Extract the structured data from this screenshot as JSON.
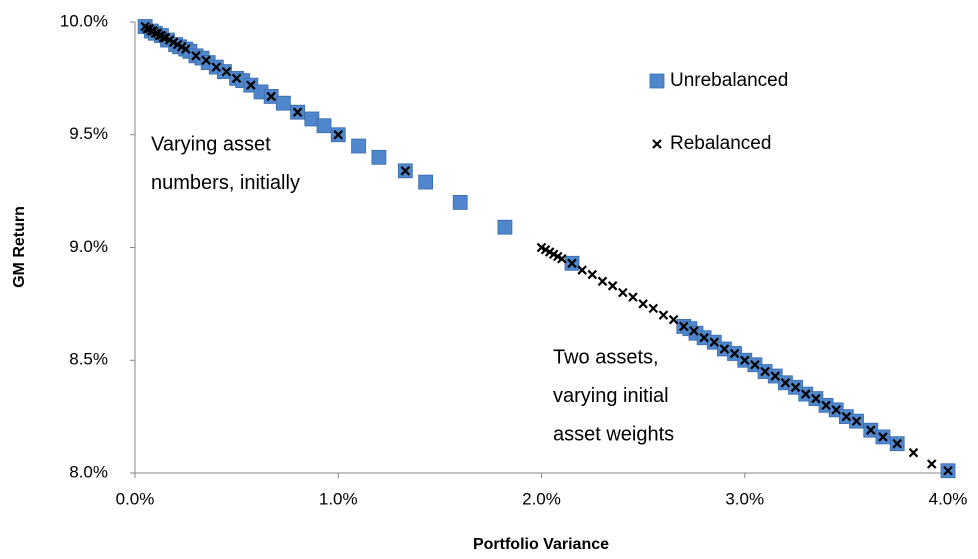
{
  "chart_data": {
    "type": "scatter",
    "xlabel": "Portfolio Variance",
    "ylabel": "GM Return",
    "xlim": [
      0,
      4
    ],
    "ylim": [
      8,
      10
    ],
    "xticks": [
      {
        "value": 0,
        "label": "0.0%"
      },
      {
        "value": 1,
        "label": "1.0%"
      },
      {
        "value": 2,
        "label": "2.0%"
      },
      {
        "value": 3,
        "label": "3.0%"
      },
      {
        "value": 4,
        "label": "4.0%"
      }
    ],
    "yticks": [
      {
        "value": 8,
        "label": "8.0%"
      },
      {
        "value": 8.5,
        "label": "8.5%"
      },
      {
        "value": 9,
        "label": "9.0%"
      },
      {
        "value": 9.5,
        "label": "9.5%"
      },
      {
        "value": 10,
        "label": "10.0%"
      }
    ],
    "grid": false,
    "legend": "upper right",
    "annotations": [
      {
        "lines": [
          "Varying asset",
          "numbers, initially"
        ]
      },
      {
        "lines": [
          "Two assets,",
          "varying initial",
          "asset weights"
        ]
      }
    ],
    "series": [
      {
        "name": "Unrebalanced",
        "color": "#4f86cc",
        "marker": "square",
        "x": [
          0.05,
          0.08,
          0.1,
          0.13,
          0.16,
          0.2,
          0.22,
          0.25,
          0.27,
          0.3,
          0.33,
          0.36,
          0.4,
          0.44,
          0.5,
          0.53,
          0.57,
          0.62,
          0.67,
          0.73,
          0.8,
          0.87,
          0.93,
          1.0,
          1.1,
          1.2,
          1.33,
          1.43,
          1.6,
          1.82,
          2.15,
          2.7,
          2.73,
          2.76,
          2.8,
          2.85,
          2.9,
          2.95,
          3.0,
          3.05,
          3.1,
          3.15,
          3.2,
          3.25,
          3.3,
          3.35,
          3.4,
          3.45,
          3.5,
          3.55,
          3.62,
          3.68,
          3.75,
          4.0
        ],
        "values": [
          9.98,
          9.96,
          9.95,
          9.94,
          9.92,
          9.9,
          9.89,
          9.88,
          9.87,
          9.85,
          9.84,
          9.82,
          9.8,
          9.78,
          9.75,
          9.74,
          9.72,
          9.69,
          9.67,
          9.64,
          9.6,
          9.57,
          9.54,
          9.5,
          9.45,
          9.4,
          9.34,
          9.29,
          9.2,
          9.09,
          8.93,
          8.65,
          8.64,
          8.62,
          8.6,
          8.58,
          8.55,
          8.53,
          8.5,
          8.48,
          8.45,
          8.43,
          8.4,
          8.38,
          8.35,
          8.33,
          8.3,
          8.28,
          8.25,
          8.23,
          8.19,
          8.16,
          8.13,
          8.01
        ]
      },
      {
        "name": "Rebalanced",
        "color": "#000000",
        "marker": "x",
        "x": [
          0.05,
          0.06,
          0.07,
          0.08,
          0.09,
          0.1,
          0.11,
          0.12,
          0.13,
          0.14,
          0.15,
          0.17,
          0.19,
          0.21,
          0.23,
          0.25,
          0.3,
          0.35,
          0.4,
          0.45,
          0.5,
          0.57,
          0.67,
          0.8,
          1.0,
          1.33,
          2.0,
          2.02,
          2.04,
          2.06,
          2.08,
          2.1,
          2.15,
          2.2,
          2.25,
          2.3,
          2.35,
          2.4,
          2.45,
          2.5,
          2.55,
          2.6,
          2.65,
          2.7,
          2.75,
          2.8,
          2.85,
          2.9,
          2.95,
          3.0,
          3.05,
          3.1,
          3.15,
          3.2,
          3.25,
          3.3,
          3.35,
          3.4,
          3.45,
          3.5,
          3.55,
          3.62,
          3.68,
          3.75,
          3.83,
          3.92,
          4.0
        ],
        "values": [
          9.98,
          9.97,
          9.97,
          9.96,
          9.96,
          9.95,
          9.95,
          9.94,
          9.94,
          9.93,
          9.93,
          9.92,
          9.91,
          9.9,
          9.89,
          9.88,
          9.85,
          9.83,
          9.8,
          9.78,
          9.75,
          9.72,
          9.67,
          9.6,
          9.5,
          9.34,
          9.0,
          8.99,
          8.98,
          8.97,
          8.96,
          8.95,
          8.93,
          8.9,
          8.88,
          8.85,
          8.83,
          8.8,
          8.78,
          8.75,
          8.73,
          8.7,
          8.68,
          8.65,
          8.63,
          8.6,
          8.58,
          8.55,
          8.53,
          8.5,
          8.48,
          8.45,
          8.43,
          8.4,
          8.38,
          8.35,
          8.33,
          8.3,
          8.28,
          8.25,
          8.23,
          8.19,
          8.16,
          8.13,
          8.09,
          8.04,
          8.01
        ]
      }
    ]
  }
}
